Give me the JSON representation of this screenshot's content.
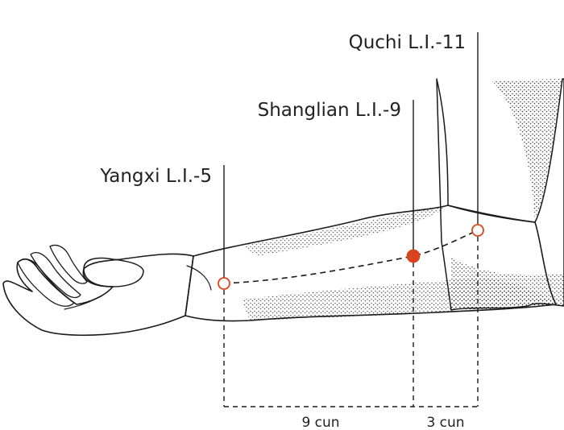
{
  "points": [
    {
      "id": "yangxi",
      "label": "Yangxi L.I.-5",
      "marker": "open-circle"
    },
    {
      "id": "shanglian",
      "label": "Shanglian L.I.-9",
      "marker": "filled-circle"
    },
    {
      "id": "quchi",
      "label": "Quchi L.I.-11",
      "marker": "open-circle"
    }
  ],
  "measurements": [
    {
      "label": "9 cun"
    },
    {
      "label": "3 cun"
    }
  ],
  "colors": {
    "point": "#d9441c",
    "ink": "#1a1a1a",
    "label": "#222222"
  }
}
